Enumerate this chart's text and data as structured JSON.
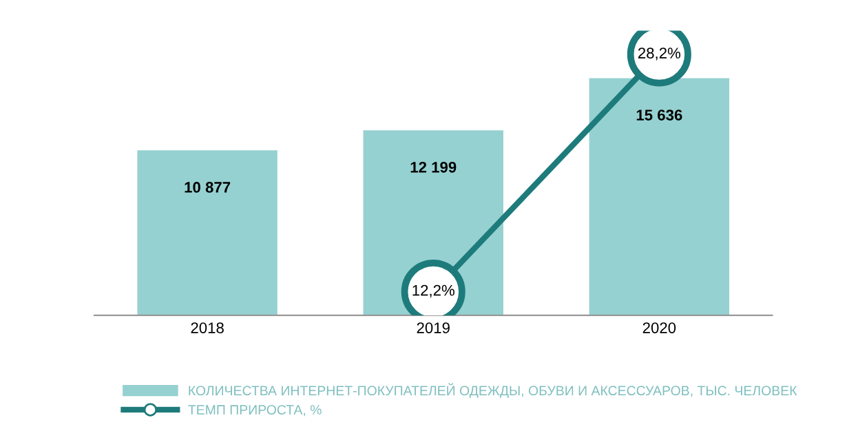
{
  "chart_data": {
    "type": "bar",
    "categories": [
      "2018",
      "2019",
      "2020"
    ],
    "series": [
      {
        "name": "КОЛИЧЕСТВА ИНТЕРНЕТ-ПОКУПАТЕЛЕЙ ОДЕЖДЫ, ОБУВИ И АКСЕССУАРОВ, ТЫС. ЧЕЛОВЕК",
        "color": "#96d1d1",
        "values": [
          10877,
          12199,
          15636
        ],
        "value_labels": [
          "10 877",
          "12 199",
          "15 636"
        ]
      },
      {
        "name": "ТЕМП ПРИРОСТА, %",
        "type": "line",
        "axis": "y2",
        "color": "#1e7b7b",
        "values": [
          null,
          12.2,
          28.2
        ],
        "value_labels": [
          null,
          "12,2%",
          "28,2%"
        ],
        "marker": "circle"
      }
    ],
    "legend": "bottom",
    "grid": false,
    "tick_labels": "x"
  }
}
